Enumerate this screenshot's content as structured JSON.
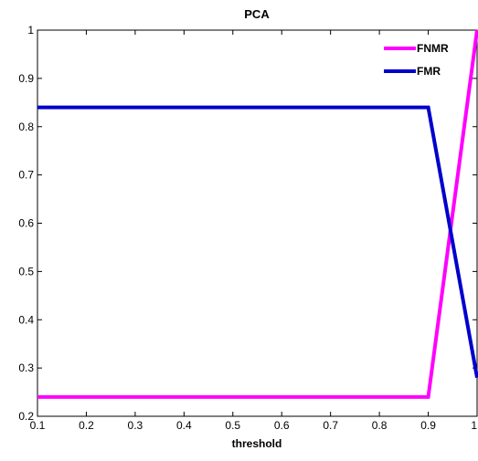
{
  "chart_data": {
    "type": "line",
    "title": "PCA",
    "xlabel": "threshold",
    "ylabel": "",
    "xlim": [
      0.1,
      1
    ],
    "ylim": [
      0.2,
      1
    ],
    "xticks": [
      "0.1",
      "0.2",
      "0.3",
      "0.4",
      "0.5",
      "0.6",
      "0.7",
      "0.8",
      "0.9",
      "1"
    ],
    "yticks": [
      "0.2",
      "0.3",
      "0.4",
      "0.5",
      "0.6",
      "0.7",
      "0.8",
      "0.9",
      "1"
    ],
    "grid": false,
    "legend_position": "top-right",
    "series": [
      {
        "name": "FNMR",
        "color": "#ff00ff",
        "x": [
          0.1,
          0.9,
          1.0
        ],
        "y": [
          0.24,
          0.24,
          1.0
        ]
      },
      {
        "name": "FMR",
        "color": "#0000cc",
        "x": [
          0.1,
          0.9,
          1.0
        ],
        "y": [
          0.84,
          0.84,
          0.28
        ]
      }
    ]
  }
}
